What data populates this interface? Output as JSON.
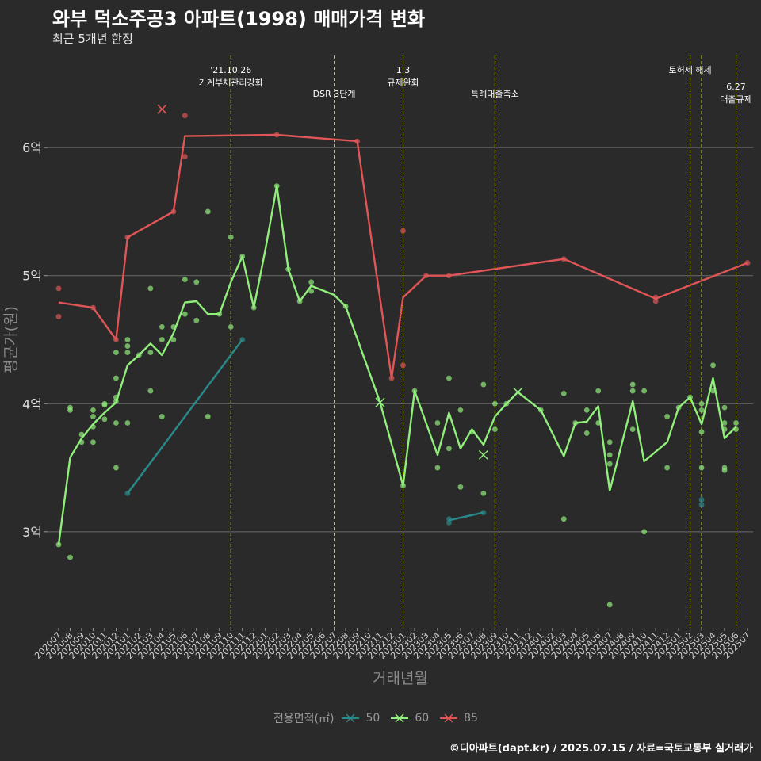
{
  "header": {
    "title": "와부 덕소주공3 아파트(1998) 매매가격 변화",
    "subtitle": "최근 5개년 한정"
  },
  "caption": "©디아파트(dapt.kr) / 2025.07.15 / 자료=국토교통부 실거래가",
  "legend": {
    "title": "전용면적(㎡)",
    "items": [
      {
        "label": "50",
        "color": "#2a8a8a"
      },
      {
        "label": "60",
        "color": "#90ee7a"
      },
      {
        "label": "85",
        "color": "#e05555"
      }
    ]
  },
  "chart_data": {
    "type": "line",
    "xlabel": "거래년월",
    "ylabel": "평균가(원)",
    "ylim": [
      2.25,
      6.75
    ],
    "yticks": [
      {
        "value": 3,
        "label": "3억"
      },
      {
        "value": 4,
        "label": "4억"
      },
      {
        "value": 5,
        "label": "5억"
      },
      {
        "value": 6,
        "label": "6억"
      }
    ],
    "grid": true,
    "legend_position": "bottom",
    "categories": [
      "202007",
      "202008",
      "202009",
      "202010",
      "202011",
      "202012",
      "202101",
      "202102",
      "202103",
      "202104",
      "202105",
      "202106",
      "202107",
      "202108",
      "202109",
      "202110",
      "202111",
      "202112",
      "202201",
      "202202",
      "202203",
      "202204",
      "202205",
      "202206",
      "202207",
      "202208",
      "202209",
      "202210",
      "202211",
      "202212",
      "202301",
      "202302",
      "202303",
      "202304",
      "202305",
      "202306",
      "202307",
      "202308",
      "202309",
      "202310",
      "202311",
      "202312",
      "202401",
      "202402",
      "202403",
      "202404",
      "202405",
      "202406",
      "202407",
      "202408",
      "202409",
      "202410",
      "202411",
      "202412",
      "202501",
      "202502",
      "202503",
      "202504",
      "202505",
      "202506",
      "202507"
    ],
    "annotations": [
      {
        "x": "202110",
        "label": "'21.10.26\n가계부채관리강화",
        "row": 0
      },
      {
        "x": "202207",
        "label": "DSR 3단계",
        "row": 1
      },
      {
        "x": "202301",
        "label": "1.3\n규제완화",
        "row": 0
      },
      {
        "x": "202309",
        "label": "특례대출축소",
        "row": 1
      },
      {
        "x": "202502",
        "label": "토허제 해제",
        "row": 0
      },
      {
        "x": "202503",
        "label": "",
        "row": 0
      },
      {
        "x": "202506",
        "label": "6.27\n대출규제",
        "row": 2
      }
    ],
    "series": [
      {
        "name": "50",
        "color": "#2a8a8a",
        "line": [
          [
            "202101",
            3.3
          ],
          [
            "202111",
            4.5
          ]
        ],
        "line2": [
          [
            "202305",
            3.09
          ],
          [
            "202308",
            3.15
          ]
        ],
        "points": [
          [
            "202101",
            3.3
          ],
          [
            "202111",
            4.5
          ],
          [
            "202305",
            3.07
          ],
          [
            "202305",
            3.1
          ],
          [
            "202308",
            3.15
          ],
          [
            "202503",
            3.21
          ],
          [
            "202503",
            3.25
          ]
        ],
        "crosses": []
      },
      {
        "name": "60",
        "color": "#90ee7a",
        "line": [
          [
            "202007",
            2.9
          ],
          [
            "202008",
            3.58
          ],
          [
            "202009",
            3.73
          ],
          [
            "202010",
            3.84
          ],
          [
            "202011",
            3.93
          ],
          [
            "202012",
            4.01
          ],
          [
            "202101",
            4.3
          ],
          [
            "202102",
            4.38
          ],
          [
            "202103",
            4.47
          ],
          [
            "202104",
            4.38
          ],
          [
            "202105",
            4.55
          ],
          [
            "202106",
            4.79
          ],
          [
            "202107",
            4.8
          ],
          [
            "202108",
            4.7
          ],
          [
            "202109",
            4.7
          ],
          [
            "202110",
            4.95
          ],
          [
            "202111",
            5.15
          ],
          [
            "202112",
            4.75
          ],
          [
            "202201",
            5.2
          ],
          [
            "202202",
            5.7
          ],
          [
            "202203",
            5.05
          ],
          [
            "202204",
            4.8
          ],
          [
            "202205",
            4.92
          ],
          [
            "202207",
            4.85
          ],
          [
            "202208",
            4.76
          ],
          [
            "202211",
            4.01
          ],
          [
            "202301",
            3.36
          ],
          [
            "202302",
            4.1
          ],
          [
            "202304",
            3.6
          ],
          [
            "202305",
            3.93
          ],
          [
            "202306",
            3.65
          ],
          [
            "202307",
            3.8
          ],
          [
            "202308",
            3.68
          ],
          [
            "202309",
            3.9
          ],
          [
            "202310",
            4.0
          ],
          [
            "202311",
            4.09
          ],
          [
            "202401",
            3.95
          ],
          [
            "202403",
            3.59
          ],
          [
            "202404",
            3.85
          ],
          [
            "202405",
            3.86
          ],
          [
            "202406",
            3.98
          ],
          [
            "202407",
            3.32
          ],
          [
            "202409",
            4.02
          ],
          [
            "202410",
            3.55
          ],
          [
            "202412",
            3.7
          ],
          [
            "202501",
            3.97
          ],
          [
            "202502",
            4.05
          ],
          [
            "202503",
            3.84
          ],
          [
            "202504",
            4.2
          ],
          [
            "202505",
            3.73
          ],
          [
            "202506",
            3.82
          ]
        ],
        "points": [
          [
            "202007",
            2.9
          ],
          [
            "202008",
            2.8
          ],
          [
            "202008",
            3.95
          ],
          [
            "202008",
            3.97
          ],
          [
            "202009",
            3.7
          ],
          [
            "202009",
            3.76
          ],
          [
            "202010",
            3.7
          ],
          [
            "202010",
            3.82
          ],
          [
            "202010",
            3.9
          ],
          [
            "202010",
            3.95
          ],
          [
            "202011",
            3.88
          ],
          [
            "202011",
            3.99
          ],
          [
            "202011",
            4.0
          ],
          [
            "202012",
            3.5
          ],
          [
            "202012",
            3.85
          ],
          [
            "202012",
            4.02
          ],
          [
            "202012",
            4.05
          ],
          [
            "202012",
            4.2
          ],
          [
            "202012",
            4.4
          ],
          [
            "202101",
            3.85
          ],
          [
            "202101",
            4.4
          ],
          [
            "202101",
            4.45
          ],
          [
            "202101",
            4.5
          ],
          [
            "202102",
            4.38
          ],
          [
            "202103",
            4.1
          ],
          [
            "202103",
            4.4
          ],
          [
            "202103",
            4.9
          ],
          [
            "202104",
            3.9
          ],
          [
            "202104",
            4.5
          ],
          [
            "202104",
            4.6
          ],
          [
            "202105",
            4.5
          ],
          [
            "202105",
            4.6
          ],
          [
            "202106",
            4.7
          ],
          [
            "202106",
            4.97
          ],
          [
            "202107",
            4.65
          ],
          [
            "202107",
            4.95
          ],
          [
            "202108",
            3.9
          ],
          [
            "202108",
            5.5
          ],
          [
            "202109",
            4.7
          ],
          [
            "202110",
            4.6
          ],
          [
            "202110",
            5.3
          ],
          [
            "202111",
            5.15
          ],
          [
            "202112",
            4.75
          ],
          [
            "202202",
            5.7
          ],
          [
            "202203",
            5.05
          ],
          [
            "202204",
            4.8
          ],
          [
            "202205",
            4.88
          ],
          [
            "202205",
            4.95
          ],
          [
            "202208",
            4.76
          ],
          [
            "202301",
            3.36
          ],
          [
            "202302",
            4.1
          ],
          [
            "202304",
            3.5
          ],
          [
            "202304",
            3.85
          ],
          [
            "202305",
            3.65
          ],
          [
            "202305",
            4.2
          ],
          [
            "202306",
            3.35
          ],
          [
            "202306",
            3.95
          ],
          [
            "202307",
            3.78
          ],
          [
            "202308",
            3.3
          ],
          [
            "202308",
            4.15
          ],
          [
            "202309",
            3.8
          ],
          [
            "202309",
            4.0
          ],
          [
            "202310",
            4.0
          ],
          [
            "202401",
            3.95
          ],
          [
            "202403",
            3.1
          ],
          [
            "202403",
            4.08
          ],
          [
            "202404",
            3.85
          ],
          [
            "202405",
            3.77
          ],
          [
            "202405",
            3.95
          ],
          [
            "202406",
            3.85
          ],
          [
            "202406",
            4.1
          ],
          [
            "202407",
            2.43
          ],
          [
            "202407",
            3.53
          ],
          [
            "202407",
            3.6
          ],
          [
            "202407",
            3.7
          ],
          [
            "202409",
            3.8
          ],
          [
            "202409",
            4.1
          ],
          [
            "202409",
            4.15
          ],
          [
            "202410",
            3.0
          ],
          [
            "202410",
            4.1
          ],
          [
            "202412",
            3.5
          ],
          [
            "202412",
            3.9
          ],
          [
            "202501",
            3.97
          ],
          [
            "202502",
            4.05
          ],
          [
            "202503",
            3.5
          ],
          [
            "202503",
            3.78
          ],
          [
            "202503",
            3.95
          ],
          [
            "202503",
            4.0
          ],
          [
            "202504",
            4.1
          ],
          [
            "202504",
            4.3
          ],
          [
            "202505",
            3.48
          ],
          [
            "202505",
            3.5
          ],
          [
            "202505",
            3.8
          ],
          [
            "202505",
            3.85
          ],
          [
            "202505",
            3.97
          ],
          [
            "202506",
            3.8
          ],
          [
            "202506",
            3.85
          ]
        ],
        "crosses": [
          [
            "202211",
            4.01
          ],
          [
            "202308",
            3.6
          ],
          [
            "202311",
            4.09
          ]
        ]
      },
      {
        "name": "85",
        "color": "#e05555",
        "line": [
          [
            "202007",
            4.79
          ],
          [
            "202010",
            4.75
          ],
          [
            "202012",
            4.5
          ],
          [
            "202101",
            5.3
          ],
          [
            "202105",
            5.5
          ],
          [
            "202106",
            6.09
          ],
          [
            "202202",
            6.1
          ],
          [
            "202209",
            6.05
          ],
          [
            "202212",
            4.2
          ],
          [
            "202301",
            4.83
          ],
          [
            "202303",
            5.0
          ],
          [
            "202305",
            5.0
          ],
          [
            "202403",
            5.13
          ],
          [
            "202411",
            4.82
          ],
          [
            "202507",
            5.1
          ]
        ],
        "points": [
          [
            "202007",
            4.9
          ],
          [
            "202007",
            4.68
          ],
          [
            "202010",
            4.75
          ],
          [
            "202012",
            4.5
          ],
          [
            "202101",
            5.3
          ],
          [
            "202105",
            5.5
          ],
          [
            "202106",
            5.93
          ],
          [
            "202106",
            6.25
          ],
          [
            "202202",
            6.1
          ],
          [
            "202209",
            6.05
          ],
          [
            "202212",
            4.2
          ],
          [
            "202301",
            4.3
          ],
          [
            "202301",
            5.35
          ],
          [
            "202303",
            5.0
          ],
          [
            "202305",
            5.0
          ],
          [
            "202403",
            5.13
          ],
          [
            "202411",
            4.8
          ],
          [
            "202411",
            4.83
          ],
          [
            "202507",
            5.1
          ]
        ],
        "crosses": [
          [
            "202104",
            6.3
          ]
        ]
      }
    ]
  }
}
